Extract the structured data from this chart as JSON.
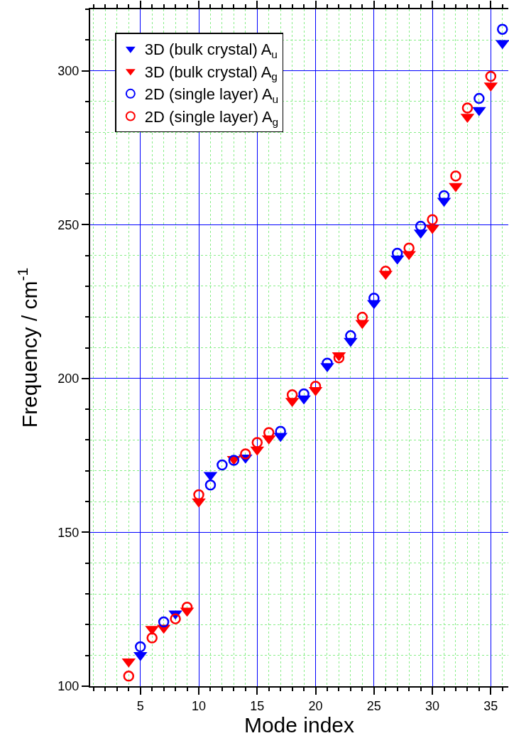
{
  "chart_data": {
    "type": "scatter",
    "xlabel": "Mode index",
    "ylabel": "Frequency / cm$^{-1}$",
    "xlim": [
      0.7,
      36.5
    ],
    "ylim": [
      100,
      320
    ],
    "xticks": [
      {
        "value": 1,
        "label": null
      },
      {
        "value": 2,
        "label": null
      },
      {
        "value": 3,
        "label": null
      },
      {
        "value": 4,
        "label": null
      },
      5,
      {
        "value": 6,
        "label": null
      },
      {
        "value": 7,
        "label": null
      },
      {
        "value": 8,
        "label": null
      },
      {
        "value": 9,
        "label": null
      },
      10,
      {
        "value": 11,
        "label": null
      },
      {
        "value": 12,
        "label": null
      },
      {
        "value": 13,
        "label": null
      },
      {
        "value": 14,
        "label": null
      },
      15,
      {
        "value": 16,
        "label": null
      },
      {
        "value": 17,
        "label": null
      },
      {
        "value": 18,
        "label": null
      },
      {
        "value": 19,
        "label": null
      },
      20,
      {
        "value": 21,
        "label": null
      },
      {
        "value": 22,
        "label": null
      },
      {
        "value": 23,
        "label": null
      },
      {
        "value": 24,
        "label": null
      },
      25,
      {
        "value": 26,
        "label": null
      },
      {
        "value": 27,
        "label": null
      },
      {
        "value": 28,
        "label": null
      },
      {
        "value": 29,
        "label": null
      },
      30,
      {
        "value": 31,
        "label": null
      },
      {
        "value": 32,
        "label": null
      },
      {
        "value": 33,
        "label": null
      },
      {
        "value": 34,
        "label": null
      },
      35,
      {
        "value": 36,
        "label": null
      }
    ],
    "yticks": [
      100,
      {
        "value": 110,
        "label": null
      },
      {
        "value": 120,
        "label": null
      },
      {
        "value": 130,
        "label": null
      },
      {
        "value": 140,
        "label": null
      },
      150,
      {
        "value": 160,
        "label": null
      },
      {
        "value": 170,
        "label": null
      },
      {
        "value": 180,
        "label": null
      },
      {
        "value": 190,
        "label": null
      },
      200,
      {
        "value": 210,
        "label": null
      },
      {
        "value": 220,
        "label": null
      },
      {
        "value": 230,
        "label": null
      },
      {
        "value": 240,
        "label": null
      },
      250,
      {
        "value": 260,
        "label": null
      },
      {
        "value": 270,
        "label": null
      },
      {
        "value": 280,
        "label": null
      },
      {
        "value": 290,
        "label": null
      },
      300,
      {
        "value": 310,
        "label": null
      },
      {
        "value": 320,
        "label": null
      }
    ],
    "grid": true,
    "legend": "top left",
    "series": [
      {
        "name": "3D (bulk crystal) A$_{u}$",
        "color": "#0000ff",
        "marker": "triangle",
        "x": [
          5,
          8,
          11,
          14,
          17,
          19,
          21,
          23,
          25,
          27,
          29,
          31,
          34,
          36
        ],
        "values": [
          110.1,
          123.6,
          168.6,
          174.3,
          181.3,
          193.5,
          204.0,
          212.2,
          224.5,
          239.0,
          247.4,
          257.7,
          287.2,
          309.0
        ]
      },
      {
        "name": "3D (bulk crystal) A$_{g}$",
        "color": "#ff0000",
        "marker": "triangle",
        "x": [
          4,
          6,
          7,
          9,
          10,
          13,
          15,
          16,
          18,
          20,
          22,
          24,
          26,
          28,
          30,
          32,
          33,
          35
        ],
        "values": [
          108.0,
          118.6,
          119.0,
          124.5,
          160.0,
          173.8,
          176.9,
          180.5,
          192.7,
          196.2,
          207.5,
          218.0,
          234.0,
          240.4,
          248.9,
          262.5,
          285.0,
          295.2
        ]
      },
      {
        "name": "2D (single layer) A$_{u}$",
        "color": "#0000ff",
        "marker": "circle",
        "x": [
          5,
          7,
          11,
          12,
          13,
          17,
          19,
          21,
          23,
          25,
          27,
          29,
          31,
          34,
          36
        ],
        "values": [
          112.8,
          120.9,
          165.4,
          171.9,
          173.4,
          182.8,
          195.0,
          205.0,
          213.9,
          226.1,
          240.7,
          249.5,
          259.4,
          291.0,
          313.5
        ]
      },
      {
        "name": "2D (single layer) A$_{g}$",
        "color": "#ff0000",
        "marker": "circle",
        "x": [
          4,
          6,
          8,
          9,
          10,
          14,
          15,
          16,
          18,
          20,
          22,
          24,
          26,
          28,
          30,
          32,
          33,
          35
        ],
        "values": [
          103.3,
          115.7,
          121.9,
          125.7,
          162.2,
          175.5,
          179.2,
          182.4,
          194.7,
          197.5,
          206.7,
          219.9,
          234.9,
          242.4,
          251.6,
          265.8,
          287.9,
          298.2
        ]
      }
    ]
  }
}
